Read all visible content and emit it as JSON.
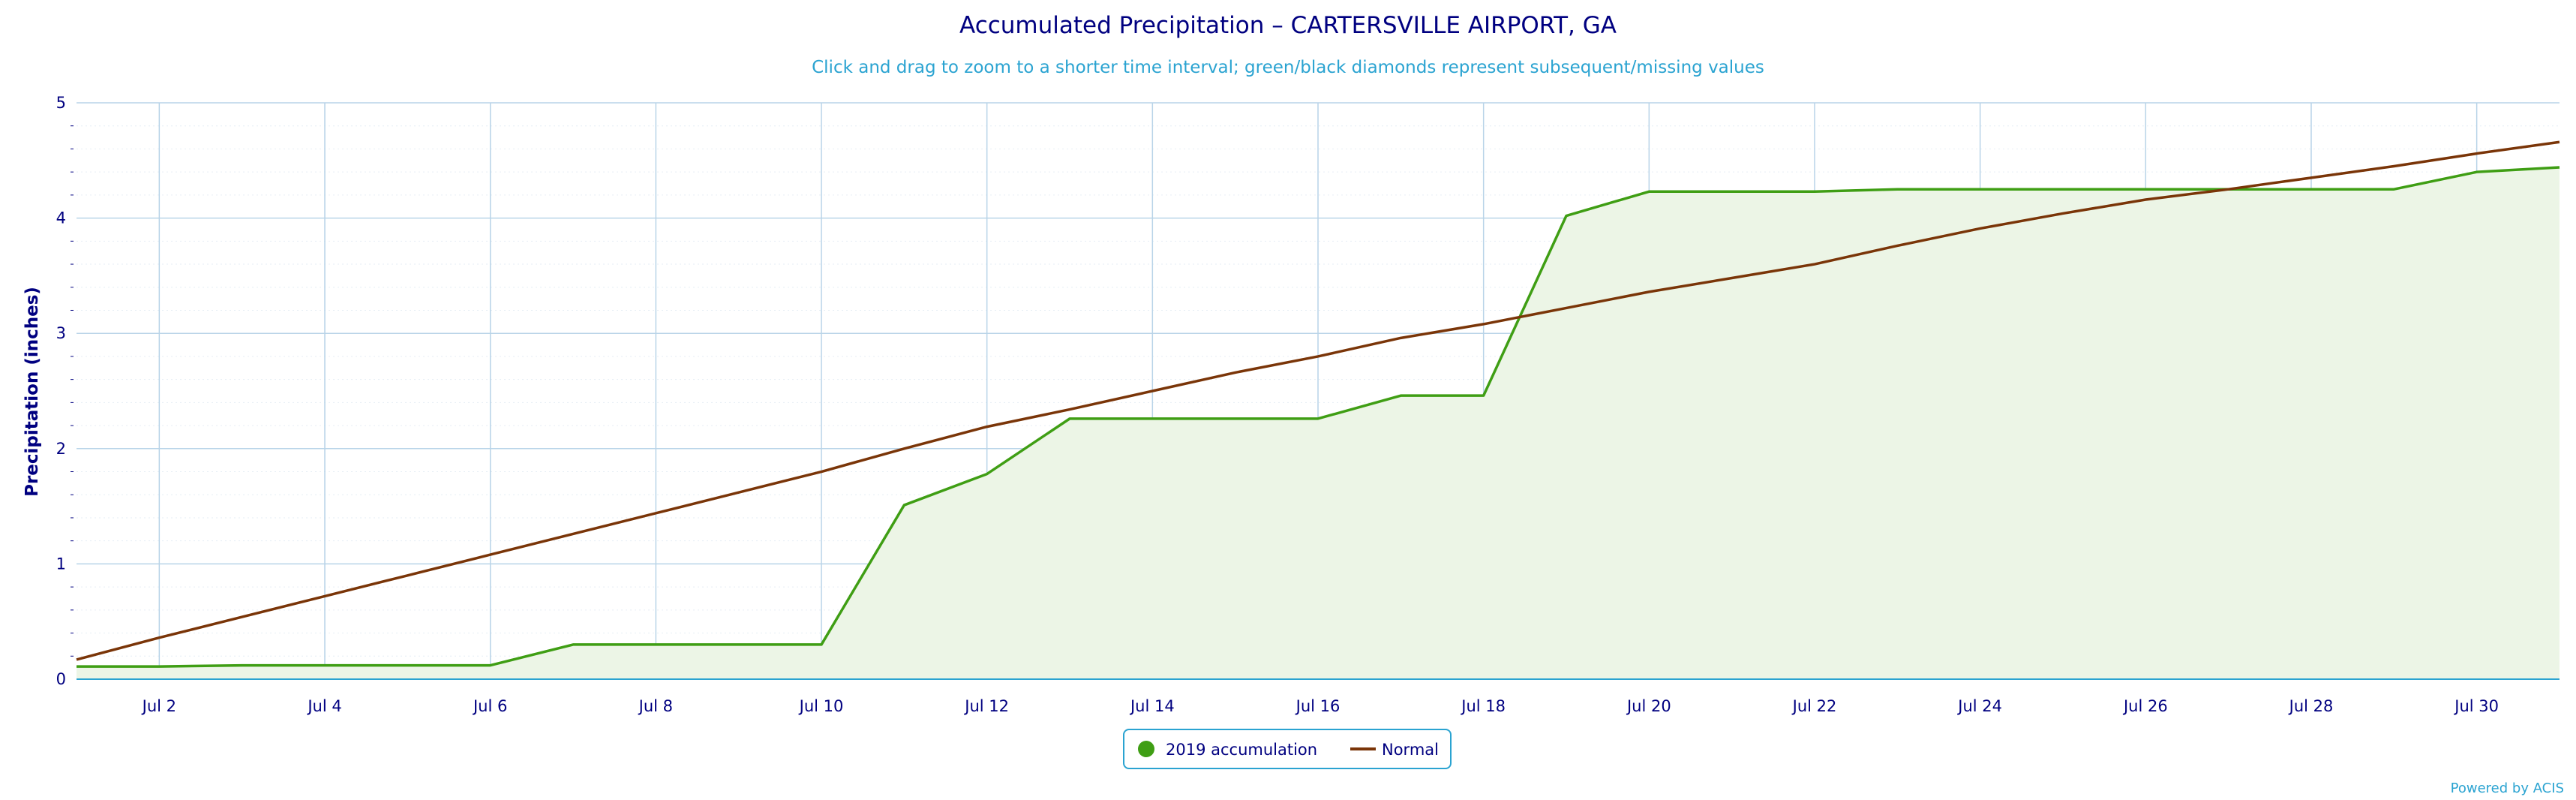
{
  "chart_data": {
    "type": "area",
    "title": "Accumulated Precipitation – CARTERSVILLE AIRPORT, GA",
    "subtitle": "Click and drag to zoom to a shorter time interval; green/black diamonds represent subsequent/missing values",
    "ylabel": "Precipitation (inches)",
    "xlabel": "",
    "xlim": [
      1,
      31
    ],
    "ylim": [
      0,
      5
    ],
    "y_ticks": [
      0,
      1,
      2,
      3,
      4,
      5
    ],
    "y_tick_labels": [
      "0",
      "1",
      "2",
      "3",
      "4",
      "5"
    ],
    "x_ticks": [
      2,
      4,
      6,
      8,
      10,
      12,
      14,
      16,
      18,
      20,
      22,
      24,
      26,
      28,
      30
    ],
    "x_tick_labels": [
      "Jul 2",
      "Jul 4",
      "Jul 6",
      "Jul 8",
      "Jul 10",
      "Jul 12",
      "Jul 14",
      "Jul 16",
      "Jul 18",
      "Jul 20",
      "Jul 22",
      "Jul 24",
      "Jul 26",
      "Jul 28",
      "Jul 30"
    ],
    "grid": true,
    "legend_position": "bottom-center",
    "series": [
      {
        "name": "2019 accumulation",
        "color": "#3f9e14",
        "fill": "#ecf5e6",
        "style": "area",
        "x": [
          1,
          2,
          3,
          4,
          5,
          6,
          7,
          8,
          9,
          10,
          11,
          12,
          13,
          14,
          15,
          16,
          17,
          18,
          19,
          20,
          21,
          22,
          23,
          24,
          25,
          26,
          27,
          28,
          29,
          30,
          31
        ],
        "y": [
          0.11,
          0.11,
          0.12,
          0.12,
          0.12,
          0.12,
          0.3,
          0.3,
          0.3,
          0.3,
          1.51,
          1.78,
          2.26,
          2.26,
          2.26,
          2.26,
          2.46,
          2.46,
          4.02,
          4.23,
          4.23,
          4.23,
          4.25,
          4.25,
          4.25,
          4.25,
          4.25,
          4.25,
          4.25,
          4.4,
          4.44
        ]
      },
      {
        "name": "Normal",
        "color": "#7a3508",
        "style": "line",
        "x": [
          1,
          2,
          3,
          4,
          5,
          6,
          7,
          8,
          9,
          10,
          11,
          12,
          13,
          14,
          15,
          16,
          17,
          18,
          19,
          20,
          21,
          22,
          23,
          24,
          25,
          26,
          27,
          28,
          29,
          30,
          31
        ],
        "y": [
          0.17,
          0.36,
          0.54,
          0.72,
          0.9,
          1.08,
          1.26,
          1.44,
          1.62,
          1.8,
          2.0,
          2.19,
          2.34,
          2.5,
          2.66,
          2.8,
          2.96,
          3.08,
          3.22,
          3.36,
          3.48,
          3.6,
          3.76,
          3.91,
          4.04,
          4.16,
          4.25,
          4.35,
          4.45,
          4.56,
          4.66
        ]
      }
    ],
    "credits": "Powered by ACIS"
  }
}
